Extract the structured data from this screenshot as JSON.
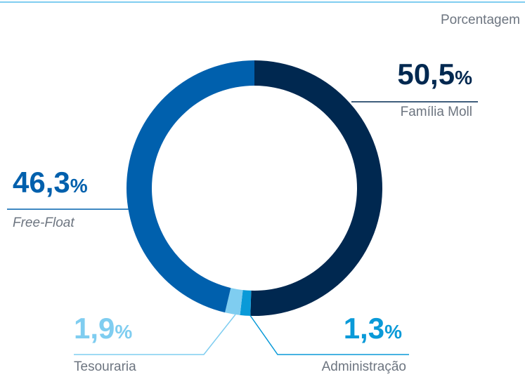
{
  "chart_data": {
    "type": "donut",
    "subtitle": "Porcentagem",
    "categories": [
      "Família Moll",
      "Administração",
      "Tesouraria",
      "Free-Float"
    ],
    "values": [
      50.5,
      1.3,
      1.9,
      46.3
    ],
    "value_labels": [
      "50,5%",
      "1,3%",
      "1,9%",
      "46,3%"
    ],
    "colors": [
      "#002850",
      "#0a9ad8",
      "#7fcdf0",
      "#0060ad"
    ]
  }
}
